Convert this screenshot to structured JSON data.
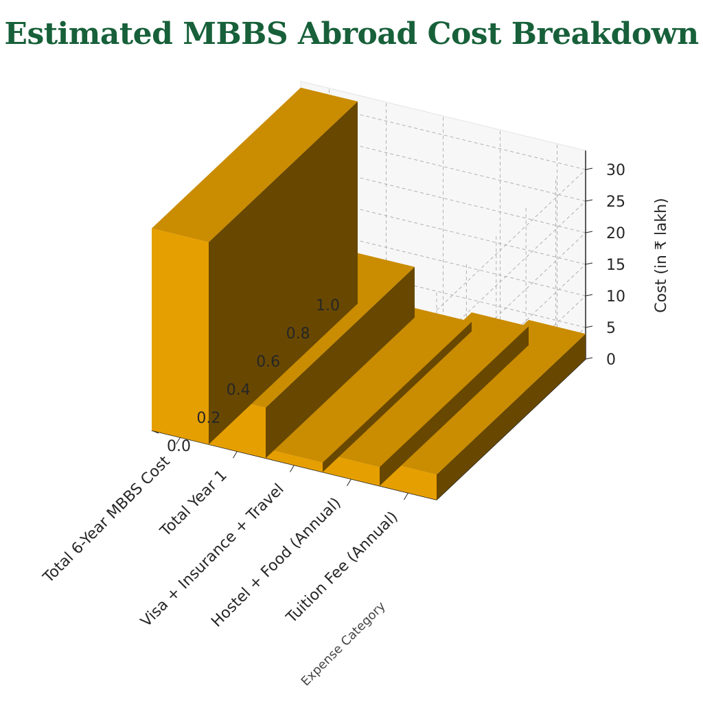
{
  "chart_data": {
    "type": "bar",
    "title": "Estimated MBBS Abroad Cost Breakdown",
    "xlabel": "Expense Category",
    "zlabel": "Cost (in ₹ lakh)",
    "categories": [
      "Tuition Fee (Annual)",
      "Hostel + Food (Annual)",
      "Visa + Insurance + Travel",
      "Total Year 1",
      "Total 6-Year MBBS Cost"
    ],
    "values": [
      4,
      3,
      1.5,
      8,
      32
    ],
    "zlim": [
      0,
      33
    ],
    "z_ticks": [
      "0",
      "5",
      "10",
      "15",
      "20",
      "25",
      "30"
    ],
    "y_ticks": [
      "0.0",
      "0.2",
      "0.4",
      "0.6",
      "0.8",
      "1.0"
    ],
    "bar_color": "#e69f00",
    "title_color": "#17603a",
    "grid": true
  }
}
